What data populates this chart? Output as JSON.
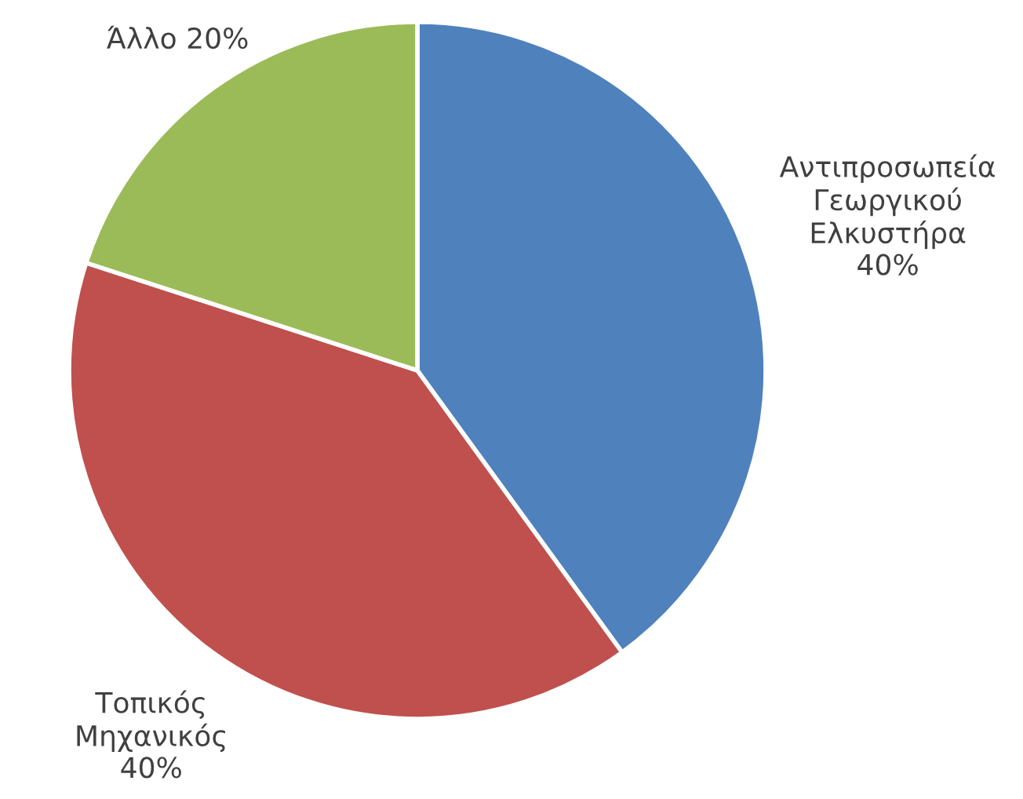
{
  "chart_data": {
    "type": "pie",
    "categories": [
      "Αντιπροσωπεία Γεωργικού Ελκυστήρα",
      "Τοπικός Μηχανικός",
      "Άλλο"
    ],
    "values": [
      40,
      40,
      20
    ],
    "value_labels": [
      "40%",
      "40%",
      "20%"
    ],
    "colors": [
      "#4f81bd",
      "#c0504d",
      "#9bbb59"
    ]
  }
}
